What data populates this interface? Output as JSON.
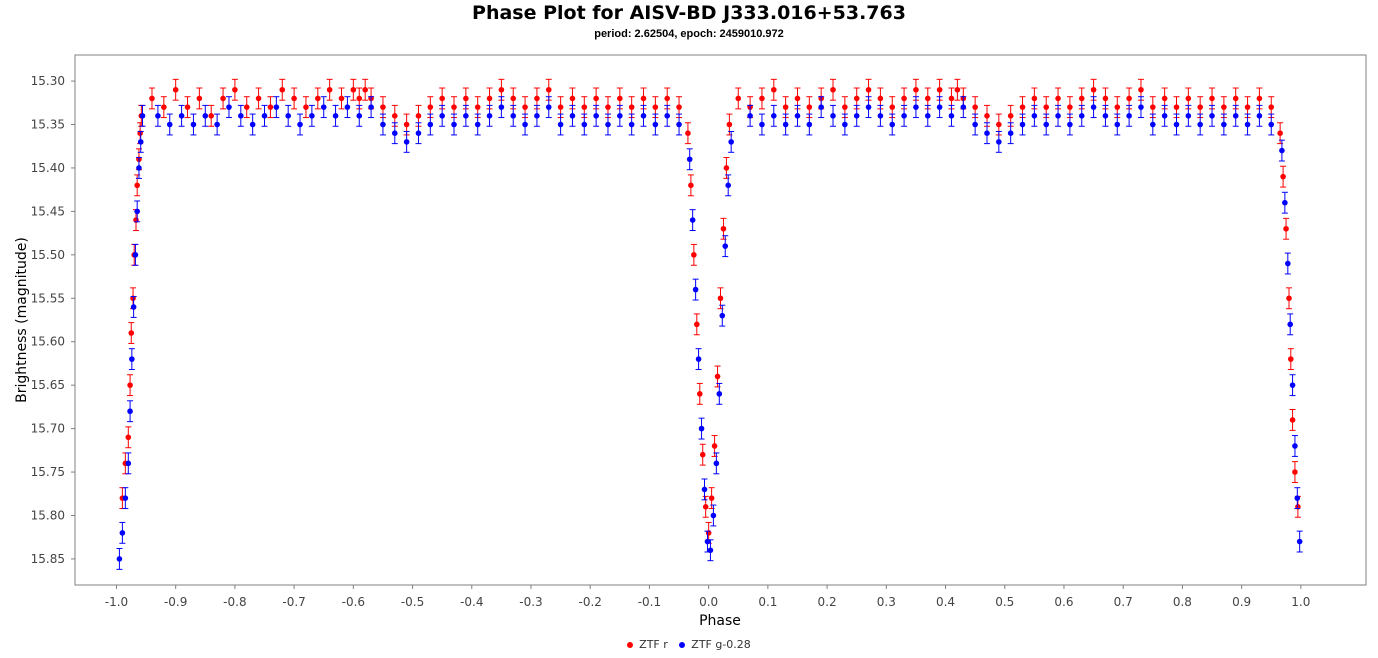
{
  "chart_data": {
    "type": "scatter",
    "title": "Phase Plot for AISV-BD J333.016+53.763",
    "subtitle": "period: 2.62504, epoch: 2459010.972",
    "xlabel": "Phase",
    "ylabel": "Brightness (magnitude)",
    "xlim": [
      -1.07,
      1.11
    ],
    "ylim": [
      15.27,
      15.88
    ],
    "y_inverted": true,
    "x_ticks": [
      "-1.0",
      "-0.9",
      "-0.8",
      "-0.7",
      "-0.6",
      "-0.5",
      "-0.4",
      "-0.3",
      "-0.2",
      "-0.1",
      "0.0",
      "0.1",
      "0.2",
      "0.3",
      "0.4",
      "0.5",
      "0.6",
      "0.7",
      "0.8",
      "0.9",
      "1.0"
    ],
    "y_ticks": [
      "15.30",
      "15.35",
      "15.40",
      "15.45",
      "15.50",
      "15.55",
      "15.60",
      "15.65",
      "15.70",
      "15.75",
      "15.80",
      "15.85"
    ],
    "legend_position": "bottom-center",
    "grid": false,
    "series": [
      {
        "name": "ZTF r",
        "color": "#ff0000",
        "points": [
          [
            -0.99,
            15.78
          ],
          [
            -0.985,
            15.74
          ],
          [
            -0.98,
            15.71
          ],
          [
            -0.977,
            15.65
          ],
          [
            -0.975,
            15.59
          ],
          [
            -0.972,
            15.55
          ],
          [
            -0.97,
            15.5
          ],
          [
            -0.967,
            15.46
          ],
          [
            -0.965,
            15.42
          ],
          [
            -0.962,
            15.39
          ],
          [
            -0.96,
            15.36
          ],
          [
            -0.958,
            15.34
          ],
          [
            -0.94,
            15.32
          ],
          [
            -0.92,
            15.33
          ],
          [
            -0.9,
            15.31
          ],
          [
            -0.88,
            15.33
          ],
          [
            -0.86,
            15.32
          ],
          [
            -0.84,
            15.34
          ],
          [
            -0.82,
            15.32
          ],
          [
            -0.8,
            15.31
          ],
          [
            -0.78,
            15.33
          ],
          [
            -0.76,
            15.32
          ],
          [
            -0.74,
            15.33
          ],
          [
            -0.72,
            15.31
          ],
          [
            -0.7,
            15.32
          ],
          [
            -0.68,
            15.33
          ],
          [
            -0.66,
            15.32
          ],
          [
            -0.64,
            15.31
          ],
          [
            -0.62,
            15.32
          ],
          [
            -0.6,
            15.31
          ],
          [
            -0.59,
            15.32
          ],
          [
            -0.58,
            15.31
          ],
          [
            -0.57,
            15.32
          ],
          [
            -0.55,
            15.33
          ],
          [
            -0.53,
            15.34
          ],
          [
            -0.51,
            15.35
          ],
          [
            -0.49,
            15.34
          ],
          [
            -0.47,
            15.33
          ],
          [
            -0.45,
            15.32
          ],
          [
            -0.43,
            15.33
          ],
          [
            -0.41,
            15.32
          ],
          [
            -0.39,
            15.33
          ],
          [
            -0.37,
            15.32
          ],
          [
            -0.35,
            15.31
          ],
          [
            -0.33,
            15.32
          ],
          [
            -0.31,
            15.33
          ],
          [
            -0.29,
            15.32
          ],
          [
            -0.27,
            15.31
          ],
          [
            -0.25,
            15.33
          ],
          [
            -0.23,
            15.32
          ],
          [
            -0.21,
            15.33
          ],
          [
            -0.19,
            15.32
          ],
          [
            -0.17,
            15.33
          ],
          [
            -0.15,
            15.32
          ],
          [
            -0.13,
            15.33
          ],
          [
            -0.11,
            15.32
          ],
          [
            -0.09,
            15.33
          ],
          [
            -0.07,
            15.32
          ],
          [
            -0.05,
            15.33
          ],
          [
            -0.035,
            15.36
          ],
          [
            -0.03,
            15.42
          ],
          [
            -0.025,
            15.5
          ],
          [
            -0.02,
            15.58
          ],
          [
            -0.015,
            15.66
          ],
          [
            -0.01,
            15.73
          ],
          [
            -0.005,
            15.79
          ],
          [
            0.0,
            15.82
          ],
          [
            0.005,
            15.78
          ],
          [
            0.01,
            15.72
          ],
          [
            0.015,
            15.64
          ],
          [
            0.02,
            15.55
          ],
          [
            0.025,
            15.47
          ],
          [
            0.03,
            15.4
          ],
          [
            0.035,
            15.35
          ],
          [
            0.05,
            15.32
          ],
          [
            0.07,
            15.33
          ],
          [
            0.09,
            15.32
          ],
          [
            0.11,
            15.31
          ],
          [
            0.13,
            15.33
          ],
          [
            0.15,
            15.32
          ],
          [
            0.17,
            15.33
          ],
          [
            0.19,
            15.32
          ],
          [
            0.21,
            15.31
          ],
          [
            0.23,
            15.33
          ],
          [
            0.25,
            15.32
          ],
          [
            0.27,
            15.31
          ],
          [
            0.29,
            15.32
          ],
          [
            0.31,
            15.33
          ],
          [
            0.33,
            15.32
          ],
          [
            0.35,
            15.31
          ],
          [
            0.37,
            15.32
          ],
          [
            0.39,
            15.31
          ],
          [
            0.41,
            15.32
          ],
          [
            0.42,
            15.31
          ],
          [
            0.43,
            15.32
          ],
          [
            0.45,
            15.33
          ],
          [
            0.47,
            15.34
          ],
          [
            0.49,
            15.35
          ],
          [
            0.51,
            15.34
          ],
          [
            0.53,
            15.33
          ],
          [
            0.55,
            15.32
          ],
          [
            0.57,
            15.33
          ],
          [
            0.59,
            15.32
          ],
          [
            0.61,
            15.33
          ],
          [
            0.63,
            15.32
          ],
          [
            0.65,
            15.31
          ],
          [
            0.67,
            15.32
          ],
          [
            0.69,
            15.33
          ],
          [
            0.71,
            15.32
          ],
          [
            0.73,
            15.31
          ],
          [
            0.75,
            15.33
          ],
          [
            0.77,
            15.32
          ],
          [
            0.79,
            15.33
          ],
          [
            0.81,
            15.32
          ],
          [
            0.83,
            15.33
          ],
          [
            0.85,
            15.32
          ],
          [
            0.87,
            15.33
          ],
          [
            0.89,
            15.32
          ],
          [
            0.91,
            15.33
          ],
          [
            0.93,
            15.32
          ],
          [
            0.95,
            15.33
          ],
          [
            0.965,
            15.36
          ],
          [
            0.97,
            15.41
          ],
          [
            0.975,
            15.47
          ],
          [
            0.98,
            15.55
          ],
          [
            0.983,
            15.62
          ],
          [
            0.986,
            15.69
          ],
          [
            0.99,
            15.75
          ],
          [
            0.995,
            15.79
          ]
        ]
      },
      {
        "name": "ZTF g-0.28",
        "color": "#0000ff",
        "points": [
          [
            -0.995,
            15.85
          ],
          [
            -0.99,
            15.82
          ],
          [
            -0.985,
            15.78
          ],
          [
            -0.98,
            15.74
          ],
          [
            -0.977,
            15.68
          ],
          [
            -0.974,
            15.62
          ],
          [
            -0.971,
            15.56
          ],
          [
            -0.968,
            15.5
          ],
          [
            -0.965,
            15.45
          ],
          [
            -0.962,
            15.4
          ],
          [
            -0.959,
            15.37
          ],
          [
            -0.956,
            15.34
          ],
          [
            -0.93,
            15.34
          ],
          [
            -0.91,
            15.35
          ],
          [
            -0.89,
            15.34
          ],
          [
            -0.87,
            15.35
          ],
          [
            -0.85,
            15.34
          ],
          [
            -0.83,
            15.35
          ],
          [
            -0.81,
            15.33
          ],
          [
            -0.79,
            15.34
          ],
          [
            -0.77,
            15.35
          ],
          [
            -0.75,
            15.34
          ],
          [
            -0.73,
            15.33
          ],
          [
            -0.71,
            15.34
          ],
          [
            -0.69,
            15.35
          ],
          [
            -0.67,
            15.34
          ],
          [
            -0.65,
            15.33
          ],
          [
            -0.63,
            15.34
          ],
          [
            -0.61,
            15.33
          ],
          [
            -0.59,
            15.34
          ],
          [
            -0.57,
            15.33
          ],
          [
            -0.55,
            15.35
          ],
          [
            -0.53,
            15.36
          ],
          [
            -0.51,
            15.37
          ],
          [
            -0.49,
            15.36
          ],
          [
            -0.47,
            15.35
          ],
          [
            -0.45,
            15.34
          ],
          [
            -0.43,
            15.35
          ],
          [
            -0.41,
            15.34
          ],
          [
            -0.39,
            15.35
          ],
          [
            -0.37,
            15.34
          ],
          [
            -0.35,
            15.33
          ],
          [
            -0.33,
            15.34
          ],
          [
            -0.31,
            15.35
          ],
          [
            -0.29,
            15.34
          ],
          [
            -0.27,
            15.33
          ],
          [
            -0.25,
            15.35
          ],
          [
            -0.23,
            15.34
          ],
          [
            -0.21,
            15.35
          ],
          [
            -0.19,
            15.34
          ],
          [
            -0.17,
            15.35
          ],
          [
            -0.15,
            15.34
          ],
          [
            -0.13,
            15.35
          ],
          [
            -0.11,
            15.34
          ],
          [
            -0.09,
            15.35
          ],
          [
            -0.07,
            15.34
          ],
          [
            -0.05,
            15.35
          ],
          [
            -0.032,
            15.39
          ],
          [
            -0.027,
            15.46
          ],
          [
            -0.022,
            15.54
          ],
          [
            -0.017,
            15.62
          ],
          [
            -0.012,
            15.7
          ],
          [
            -0.007,
            15.77
          ],
          [
            -0.002,
            15.83
          ],
          [
            0.003,
            15.84
          ],
          [
            0.008,
            15.8
          ],
          [
            0.013,
            15.74
          ],
          [
            0.018,
            15.66
          ],
          [
            0.023,
            15.57
          ],
          [
            0.028,
            15.49
          ],
          [
            0.033,
            15.42
          ],
          [
            0.038,
            15.37
          ],
          [
            0.07,
            15.34
          ],
          [
            0.09,
            15.35
          ],
          [
            0.11,
            15.34
          ],
          [
            0.13,
            15.35
          ],
          [
            0.15,
            15.34
          ],
          [
            0.17,
            15.35
          ],
          [
            0.19,
            15.33
          ],
          [
            0.21,
            15.34
          ],
          [
            0.23,
            15.35
          ],
          [
            0.25,
            15.34
          ],
          [
            0.27,
            15.33
          ],
          [
            0.29,
            15.34
          ],
          [
            0.31,
            15.35
          ],
          [
            0.33,
            15.34
          ],
          [
            0.35,
            15.33
          ],
          [
            0.37,
            15.34
          ],
          [
            0.39,
            15.33
          ],
          [
            0.41,
            15.34
          ],
          [
            0.43,
            15.33
          ],
          [
            0.45,
            15.35
          ],
          [
            0.47,
            15.36
          ],
          [
            0.49,
            15.37
          ],
          [
            0.51,
            15.36
          ],
          [
            0.53,
            15.35
          ],
          [
            0.55,
            15.34
          ],
          [
            0.57,
            15.35
          ],
          [
            0.59,
            15.34
          ],
          [
            0.61,
            15.35
          ],
          [
            0.63,
            15.34
          ],
          [
            0.65,
            15.33
          ],
          [
            0.67,
            15.34
          ],
          [
            0.69,
            15.35
          ],
          [
            0.71,
            15.34
          ],
          [
            0.73,
            15.33
          ],
          [
            0.75,
            15.35
          ],
          [
            0.77,
            15.34
          ],
          [
            0.79,
            15.35
          ],
          [
            0.81,
            15.34
          ],
          [
            0.83,
            15.35
          ],
          [
            0.85,
            15.34
          ],
          [
            0.87,
            15.35
          ],
          [
            0.89,
            15.34
          ],
          [
            0.91,
            15.35
          ],
          [
            0.93,
            15.34
          ],
          [
            0.95,
            15.35
          ],
          [
            0.968,
            15.38
          ],
          [
            0.973,
            15.44
          ],
          [
            0.978,
            15.51
          ],
          [
            0.982,
            15.58
          ],
          [
            0.986,
            15.65
          ],
          [
            0.99,
            15.72
          ],
          [
            0.994,
            15.78
          ],
          [
            0.998,
            15.83
          ]
        ]
      }
    ]
  }
}
